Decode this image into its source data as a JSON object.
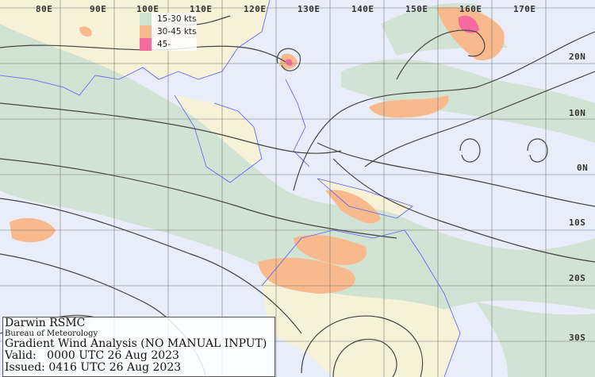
{
  "map": {
    "longitude_labels": [
      "80E",
      "90E",
      "100E",
      "110E",
      "120E",
      "130E",
      "140E",
      "150E",
      "160E",
      "170E"
    ],
    "latitude_labels": [
      "20N",
      "10N",
      "0N",
      "10S",
      "20S",
      "30S"
    ],
    "colors": {
      "ocean": "#e9edf9",
      "land": "#f5f2d8",
      "wind_15_30": "#cfe3d3",
      "wind_30_45": "#f8b98c",
      "wind_45_plus": "#f76a9f",
      "coastline": "#5a5aff",
      "streamline": "#444444",
      "grid": "#777777"
    }
  },
  "legend": {
    "items": [
      {
        "label": "15-30 kts",
        "color": "#cfe3d3"
      },
      {
        "label": "30-45 kts",
        "color": "#f8b98c"
      },
      {
        "label": "45-",
        "color": "#f76a9f"
      }
    ]
  },
  "info": {
    "center": "Darwin RSMC",
    "agency": "Bureau of Meteorology",
    "title": "Gradient Wind Analysis (NO MANUAL INPUT)",
    "valid": "Valid:   0000 UTC 26 Aug 2023",
    "issued": "Issued: 0416 UTC 26 Aug 2023"
  }
}
